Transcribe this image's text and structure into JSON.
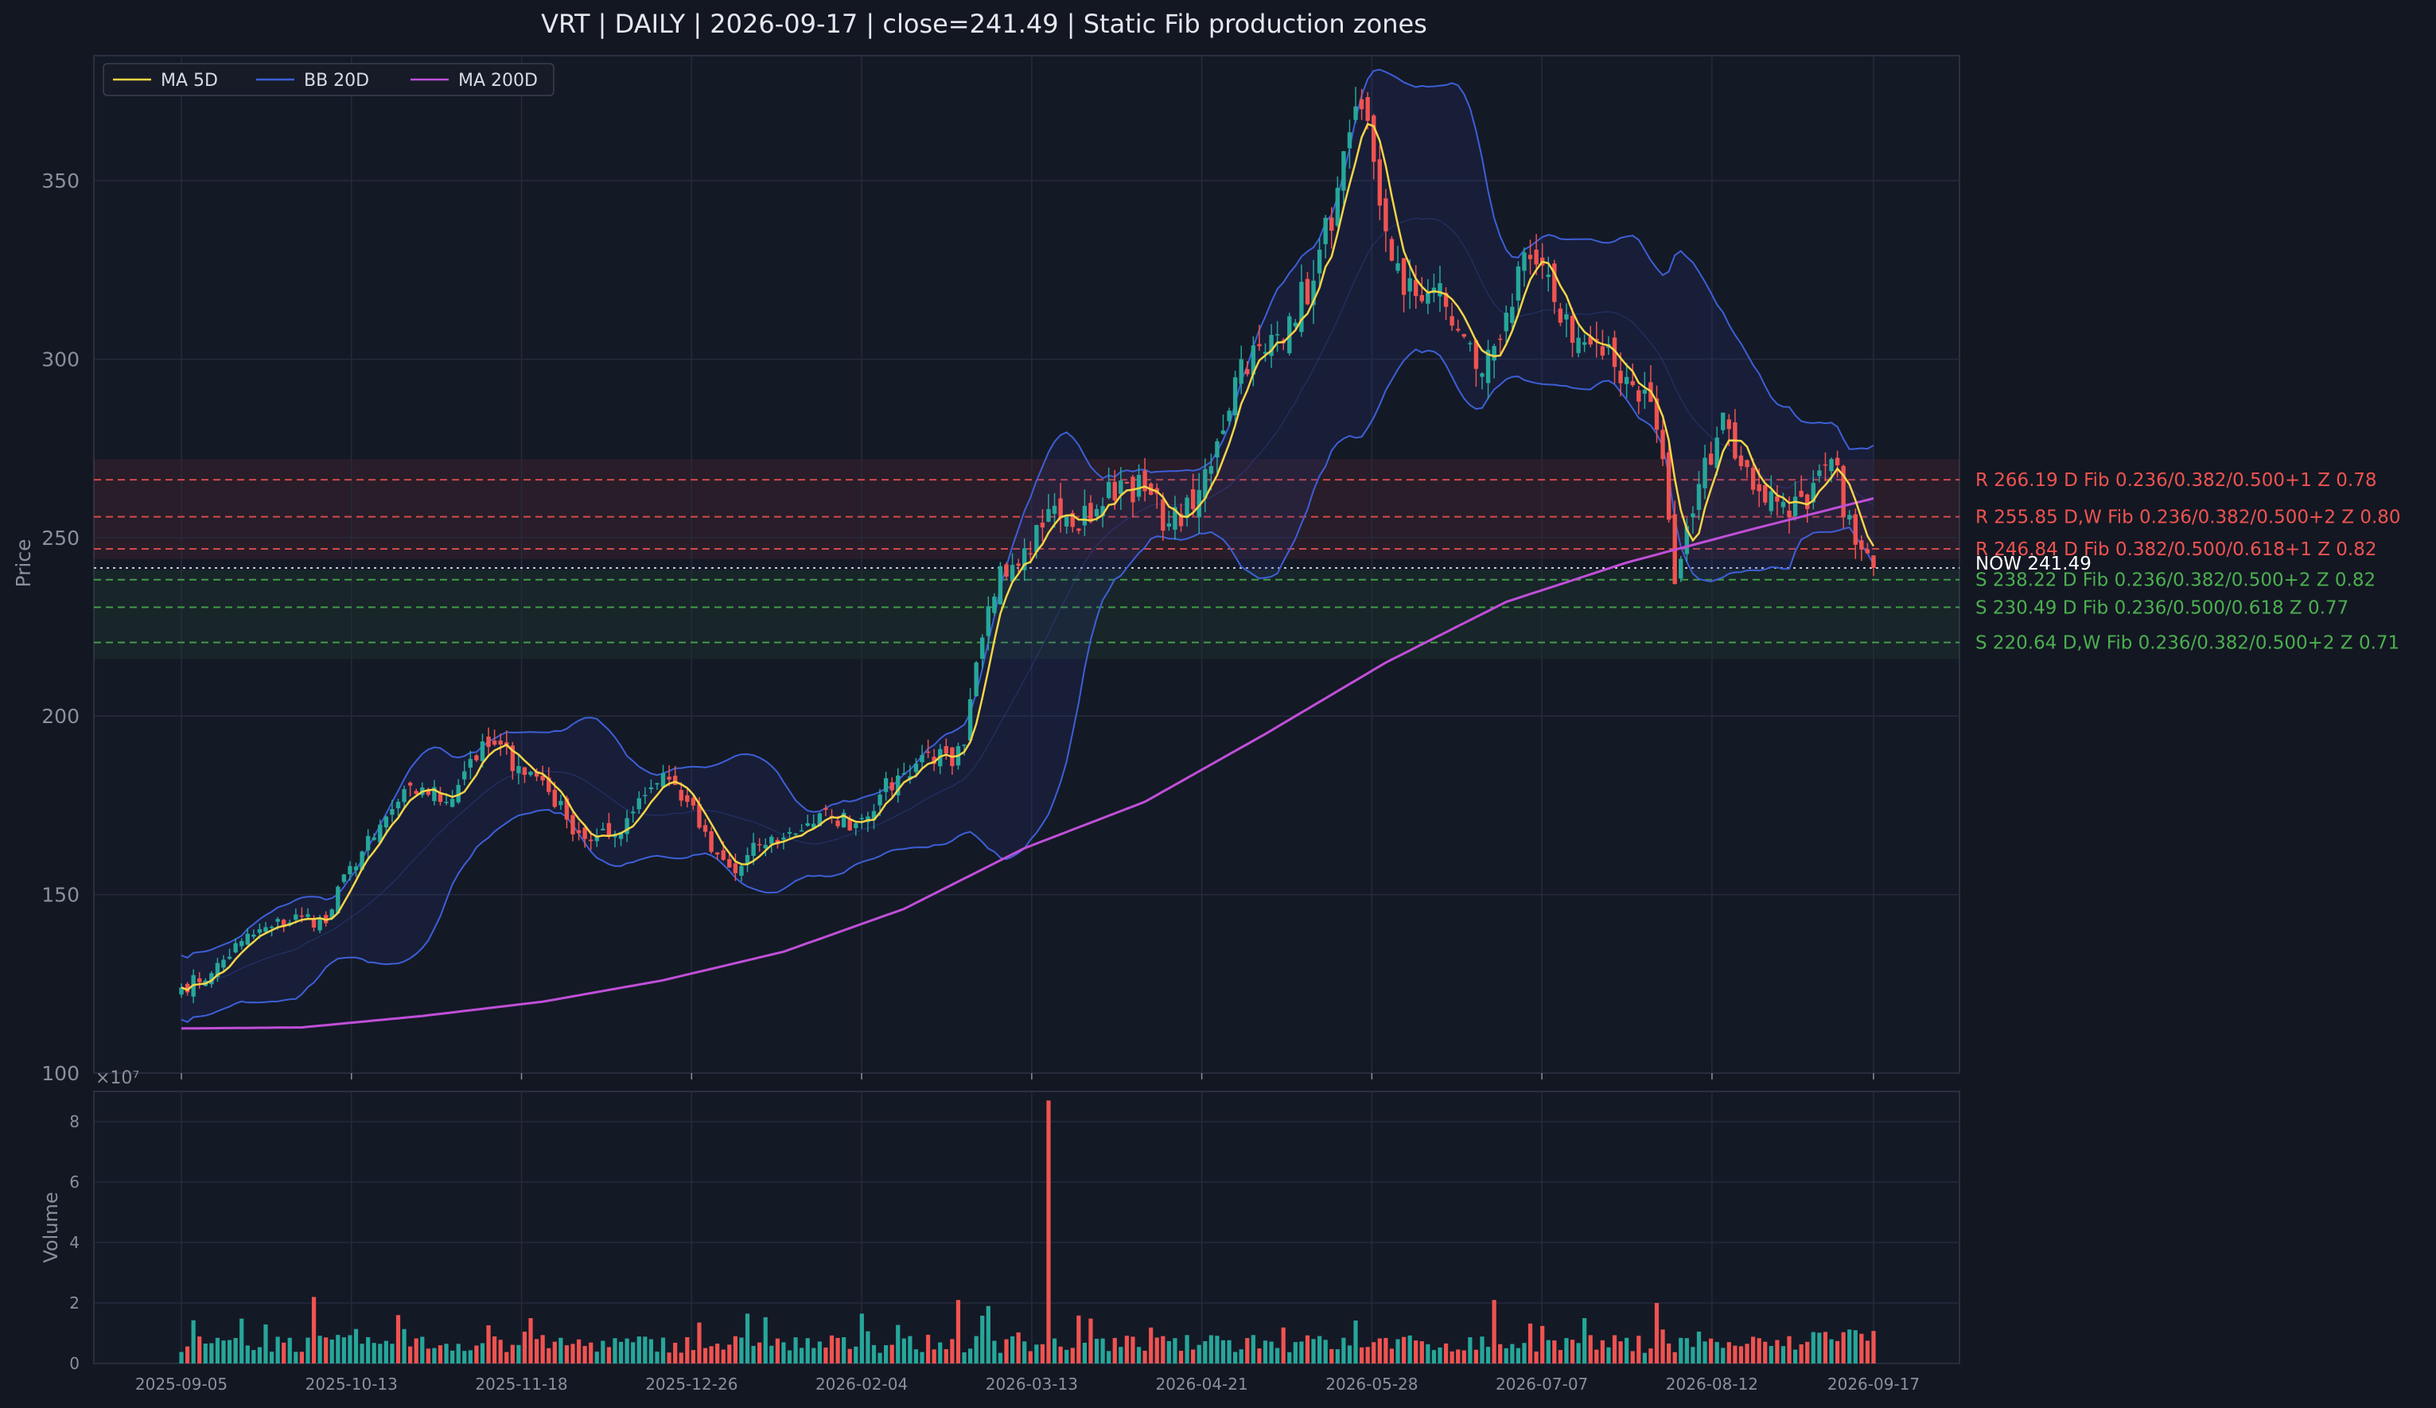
{
  "title": "VRT  |  DAILY  |  2026-09-17  |  close=241.49  |  Static Fib production zones",
  "colors": {
    "background": "#131722",
    "panel": "#141926",
    "grid": "#252b3b",
    "up": "#26a69a",
    "down": "#ef5350",
    "ma5": "#f5d547",
    "bb": "#3d5fd6",
    "ma200": "#c04fd8",
    "resistance": "#ef5350",
    "support": "#4caf50",
    "text": "#d7dbe4",
    "axis_text": "#8a8f9c"
  },
  "chart_data": [
    {
      "type": "candlestick",
      "ylabel": "Price",
      "ylim": [
        100,
        385
      ],
      "yticks": [
        100,
        150,
        200,
        250,
        300,
        350
      ],
      "xticks": [
        "2025-09-05",
        "2025-10-13",
        "2025-11-18",
        "2025-12-26",
        "2026-02-04",
        "2026-03-13",
        "2026-04-21",
        "2026-05-28",
        "2026-07-07",
        "2026-08-12",
        "2026-09-17"
      ],
      "legend": {
        "position": "top-left",
        "entries": [
          "MA 5D",
          "BB 20D",
          "MA 200D"
        ]
      },
      "grid": true,
      "last_close": 241.49,
      "now_label": "NOW 241.49",
      "anchors": [
        [
          0,
          124
        ],
        [
          5,
          128
        ],
        [
          10,
          137
        ],
        [
          15,
          141
        ],
        [
          20,
          144
        ],
        [
          24,
          142
        ],
        [
          28,
          158
        ],
        [
          32,
          166
        ],
        [
          36,
          176
        ],
        [
          40,
          180
        ],
        [
          44,
          176
        ],
        [
          48,
          188
        ],
        [
          52,
          192
        ],
        [
          56,
          186
        ],
        [
          60,
          182
        ],
        [
          64,
          171
        ],
        [
          68,
          165
        ],
        [
          72,
          167
        ],
        [
          76,
          177
        ],
        [
          80,
          184
        ],
        [
          84,
          176
        ],
        [
          88,
          162
        ],
        [
          92,
          156
        ],
        [
          96,
          164
        ],
        [
          100,
          166
        ],
        [
          104,
          170
        ],
        [
          108,
          172
        ],
        [
          112,
          170
        ],
        [
          116,
          178
        ],
        [
          120,
          184
        ],
        [
          124,
          190
        ],
        [
          128,
          186
        ],
        [
          130,
          192
        ],
        [
          133,
          222
        ],
        [
          136,
          242
        ],
        [
          140,
          247
        ],
        [
          144,
          258
        ],
        [
          148,
          253
        ],
        [
          152,
          258
        ],
        [
          156,
          266
        ],
        [
          160,
          263
        ],
        [
          164,
          254
        ],
        [
          168,
          258
        ],
        [
          172,
          277
        ],
        [
          176,
          300
        ],
        [
          180,
          302
        ],
        [
          184,
          312
        ],
        [
          188,
          322
        ],
        [
          192,
          348
        ],
        [
          196,
          370
        ],
        [
          199,
          343
        ],
        [
          203,
          318
        ],
        [
          208,
          320
        ],
        [
          212,
          308
        ],
        [
          216,
          296
        ],
        [
          220,
          313
        ],
        [
          224,
          328
        ],
        [
          228,
          316
        ],
        [
          232,
          306
        ],
        [
          236,
          301
        ],
        [
          240,
          295
        ],
        [
          244,
          288
        ],
        [
          246,
          272
        ],
        [
          248,
          237
        ],
        [
          252,
          265
        ],
        [
          256,
          285
        ],
        [
          259,
          270
        ],
        [
          262,
          263
        ],
        [
          266,
          260
        ],
        [
          270,
          258
        ],
        [
          274,
          272
        ],
        [
          278,
          248
        ],
        [
          281,
          241.49
        ]
      ],
      "ma200": [
        [
          0,
          112.5
        ],
        [
          20,
          112.8
        ],
        [
          40,
          116
        ],
        [
          60,
          120
        ],
        [
          80,
          126
        ],
        [
          100,
          134
        ],
        [
          120,
          146
        ],
        [
          140,
          163
        ],
        [
          160,
          176
        ],
        [
          180,
          195
        ],
        [
          200,
          215
        ],
        [
          220,
          232
        ],
        [
          240,
          243
        ],
        [
          260,
          252
        ],
        [
          281,
          261
        ]
      ],
      "levels": [
        {
          "kind": "R",
          "price": 266.19,
          "label": "R 266.19  D  Fib 0.236/0.382/0.500+1  Z 0.78"
        },
        {
          "kind": "R",
          "price": 255.85,
          "label": "R 255.85  D,W  Fib 0.236/0.382/0.500+2  Z 0.80"
        },
        {
          "kind": "R",
          "price": 246.84,
          "label": "R 246.84  D  Fib 0.382/0.500/0.618+1  Z 0.82"
        },
        {
          "kind": "S",
          "price": 238.22,
          "label": "S 238.22  D  Fib 0.236/0.382/0.500+2  Z 0.82"
        },
        {
          "kind": "S",
          "price": 230.49,
          "label": "S 230.49  D  Fib 0.236/0.500/0.618  Z 0.77"
        },
        {
          "kind": "S",
          "price": 220.64,
          "label": "S 220.64  D,W  Fib 0.236/0.382/0.500+2  Z 0.71"
        }
      ],
      "zones": {
        "resistance": [
          244,
          272
        ],
        "support": [
          216,
          241
        ]
      }
    },
    {
      "type": "bar",
      "ylabel": "Volume",
      "ylim": [
        0,
        9
      ],
      "yticks": [
        0,
        2,
        4,
        6,
        8
      ],
      "multiplier": "×10⁷",
      "spikes": [
        {
          "index": 144,
          "value": 8.7,
          "dir": "down"
        },
        {
          "index": 22,
          "value": 2.2,
          "dir": "down"
        },
        {
          "index": 134,
          "value": 1.9,
          "dir": "up"
        },
        {
          "index": 129,
          "value": 2.1,
          "dir": "down"
        },
        {
          "index": 218,
          "value": 2.1,
          "dir": "down"
        },
        {
          "index": 245,
          "value": 2.0,
          "dir": "down"
        },
        {
          "index": 36,
          "value": 1.6,
          "dir": "down"
        },
        {
          "index": 58,
          "value": 1.5,
          "dir": "down"
        },
        {
          "index": 278,
          "value": 1.1,
          "dir": "up"
        }
      ]
    }
  ]
}
